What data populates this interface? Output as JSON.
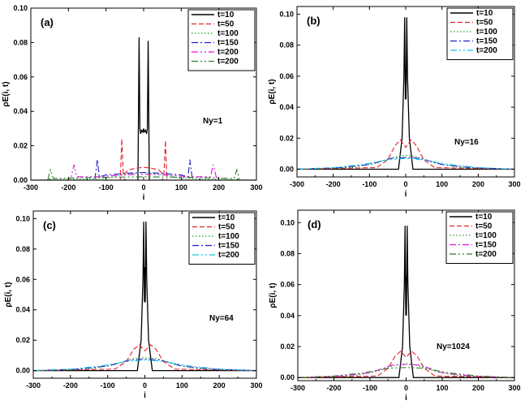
{
  "chart_data": [
    {
      "type": "line",
      "panel_label": "(a)",
      "annotation": "N<sub>y</sub>=1",
      "annotation_text": "Ny=1",
      "xlabel": "i",
      "ylabel": "ρE(i, t)",
      "xlim": [
        -300,
        300
      ],
      "ylim": [
        0,
        0.1
      ],
      "xticks": [
        -300,
        -200,
        -100,
        0,
        100,
        200,
        300
      ],
      "yticks": [
        0.0,
        0.02,
        0.04,
        0.06,
        0.08,
        0.1
      ],
      "ytick_labels": [
        "0.00",
        "0.02",
        "0.04",
        "0.06",
        "0.08",
        "0.10"
      ],
      "legend_position": "top-right",
      "series": [
        {
          "name": "t=10",
          "color": "#000000",
          "dash": "",
          "x": [
            -300,
            -15,
            -12,
            -10,
            -8,
            -5,
            -2,
            0,
            2,
            5,
            8,
            10,
            12,
            15,
            300
          ],
          "y": [
            0.0,
            0.0,
            0.083,
            0.03,
            0.027,
            0.029,
            0.028,
            0.03,
            0.028,
            0.029,
            0.027,
            0.03,
            0.081,
            0.0,
            0.0
          ]
        },
        {
          "name": "t=50",
          "color": "#e8202a",
          "dash": "6,3",
          "x": [
            -300,
            -70,
            -62,
            -58,
            -54,
            -40,
            -20,
            0,
            20,
            40,
            54,
            58,
            62,
            70,
            300
          ],
          "y": [
            0.0,
            0.0,
            0.0,
            0.024,
            0.003,
            0.006,
            0.007,
            0.0075,
            0.007,
            0.006,
            0.003,
            0.023,
            0.0,
            0.0,
            0.0
          ]
        },
        {
          "name": "t=100",
          "color": "#1aa31a",
          "dash": "1.5,2.5",
          "x": [
            -300,
            -100,
            -60,
            -20,
            0,
            20,
            60,
            100,
            300
          ],
          "y": [
            0.0,
            0.001,
            0.003,
            0.004,
            0.0045,
            0.004,
            0.003,
            0.001,
            0.0
          ]
        },
        {
          "name": "t=150",
          "color": "#2020c8",
          "dash": "8,3,2,3",
          "x": [
            -300,
            -130,
            -123,
            -118,
            -100,
            -50,
            0,
            50,
            100,
            118,
            123,
            130,
            300
          ],
          "y": [
            0.0,
            0.0,
            0.012,
            0.002,
            0.003,
            0.004,
            0.0045,
            0.004,
            0.003,
            0.002,
            0.012,
            0.0,
            0.0
          ]
        },
        {
          "name": "t=200",
          "color": "#e010e0",
          "dash": "8,3,2,3,2,3",
          "x": [
            -300,
            -195,
            -185,
            -178,
            -120,
            -60,
            0,
            60,
            120,
            178,
            185,
            195,
            300
          ],
          "y": [
            0.0,
            0.0,
            0.009,
            0.002,
            0.002,
            0.003,
            0.0035,
            0.003,
            0.002,
            0.002,
            0.009,
            0.0,
            0.0
          ]
        },
        {
          "name": "t=200",
          "color": "#2e7d2e",
          "dash": "8,3,2,3,2,3",
          "x": [
            -300,
            -255,
            -248,
            -240,
            -150,
            0,
            150,
            240,
            248,
            255,
            300
          ],
          "y": [
            0.0,
            0.0,
            0.006,
            0.001,
            0.0015,
            0.002,
            0.0015,
            0.001,
            0.006,
            0.0,
            0.0
          ]
        }
      ]
    },
    {
      "type": "line",
      "panel_label": "(b)",
      "annotation_text": "Ny=16",
      "xlabel": "i",
      "ylabel": "ρE(i, t)",
      "xlim": [
        -300,
        300
      ],
      "ylim": [
        -0.005,
        0.105
      ],
      "xticks": [
        -300,
        -200,
        -100,
        0,
        100,
        200,
        300
      ],
      "yticks": [
        0.0,
        0.02,
        0.04,
        0.06,
        0.08,
        0.1
      ],
      "ytick_labels": [
        "0.00",
        "0.02",
        "0.04",
        "0.06",
        "0.08",
        "0.10"
      ],
      "legend_position": "top-right",
      "series": [
        {
          "name": "t=10",
          "color": "#000000",
          "dash": "",
          "x": [
            -300,
            -20,
            -10,
            -5,
            -3,
            -1,
            0,
            1,
            3,
            5,
            10,
            20,
            300
          ],
          "y": [
            0.0,
            0.0,
            0.02,
            0.06,
            0.098,
            0.045,
            0.065,
            0.045,
            0.098,
            0.06,
            0.02,
            0.0,
            0.0
          ]
        },
        {
          "name": "t=50",
          "color": "#e8202a",
          "dash": "6,3",
          "x": [
            -300,
            -80,
            -50,
            -30,
            -15,
            0,
            15,
            30,
            50,
            80,
            300
          ],
          "y": [
            0.0,
            0.001,
            0.006,
            0.015,
            0.019,
            0.014,
            0.019,
            0.015,
            0.006,
            0.001,
            0.0
          ]
        },
        {
          "name": "t=100",
          "color": "#1aa31a",
          "dash": "1.5,2.5",
          "x": [
            -300,
            -150,
            -80,
            -30,
            0,
            30,
            80,
            150,
            300
          ],
          "y": [
            0.0,
            0.001,
            0.004,
            0.008,
            0.009,
            0.008,
            0.004,
            0.001,
            0.0
          ]
        },
        {
          "name": "t=150",
          "color": "#2020c8",
          "dash": "8,3,2,3",
          "x": [
            -300,
            -180,
            -100,
            -40,
            0,
            40,
            100,
            180,
            300
          ],
          "y": [
            0.0,
            0.001,
            0.003,
            0.007,
            0.0075,
            0.007,
            0.003,
            0.001,
            0.0
          ]
        },
        {
          "name": "t=200",
          "color": "#10c8e8",
          "dash": "8,3,2,3,2,3",
          "x": [
            -300,
            -200,
            -120,
            -50,
            0,
            50,
            120,
            200,
            300
          ],
          "y": [
            0.0,
            0.001,
            0.003,
            0.006,
            0.007,
            0.006,
            0.003,
            0.001,
            0.0
          ]
        }
      ]
    },
    {
      "type": "line",
      "panel_label": "(c)",
      "annotation_text": "Ny=64",
      "xlabel": "i",
      "ylabel": "ρE(i, t)",
      "xlim": [
        -300,
        300
      ],
      "ylim": [
        -0.005,
        0.105
      ],
      "xticks": [
        -300,
        -200,
        -100,
        0,
        100,
        200,
        300
      ],
      "yticks": [
        0.0,
        0.02,
        0.04,
        0.06,
        0.08,
        0.1
      ],
      "ytick_labels": [
        "0.00",
        "0.02",
        "0.04",
        "0.06",
        "0.08",
        "0.10"
      ],
      "legend_position": "top-right",
      "series": [
        {
          "name": "t=10",
          "color": "#000000",
          "dash": "",
          "x": [
            -300,
            -20,
            -10,
            -5,
            -3,
            -1,
            0,
            1,
            3,
            5,
            10,
            20,
            300
          ],
          "y": [
            0.0,
            0.0,
            0.02,
            0.06,
            0.098,
            0.045,
            0.068,
            0.045,
            0.098,
            0.06,
            0.02,
            0.0,
            0.0
          ]
        },
        {
          "name": "t=50",
          "color": "#e8202a",
          "dash": "6,3",
          "x": [
            -300,
            -80,
            -50,
            -30,
            -15,
            0,
            15,
            30,
            50,
            80,
            300
          ],
          "y": [
            0.0,
            0.001,
            0.006,
            0.014,
            0.017,
            0.013,
            0.017,
            0.014,
            0.006,
            0.001,
            0.0
          ]
        },
        {
          "name": "t=100",
          "color": "#1aa31a",
          "dash": "1.5,2.5",
          "x": [
            -300,
            -150,
            -80,
            -30,
            0,
            30,
            80,
            150,
            300
          ],
          "y": [
            0.0,
            0.001,
            0.004,
            0.008,
            0.0085,
            0.008,
            0.004,
            0.001,
            0.0
          ]
        },
        {
          "name": "t=150",
          "color": "#2020c8",
          "dash": "8,3,2,3",
          "x": [
            -300,
            -180,
            -100,
            -40,
            0,
            40,
            100,
            180,
            300
          ],
          "y": [
            0.0,
            0.001,
            0.003,
            0.007,
            0.0075,
            0.007,
            0.003,
            0.001,
            0.0
          ]
        },
        {
          "name": "t=200",
          "color": "#10c8e8",
          "dash": "8,3,2,3,2,3",
          "x": [
            -300,
            -200,
            -120,
            -50,
            0,
            50,
            120,
            200,
            300
          ],
          "y": [
            0.0,
            0.001,
            0.003,
            0.006,
            0.007,
            0.006,
            0.003,
            0.001,
            0.0
          ]
        }
      ]
    },
    {
      "type": "line",
      "panel_label": "(d)",
      "annotation_text": "Ny=1024",
      "xlabel": "i",
      "ylabel": "ρE(i, t)",
      "xlim": [
        -300,
        300
      ],
      "ylim": [
        -0.002,
        0.108
      ],
      "xticks": [
        -300,
        -200,
        -100,
        0,
        100,
        200,
        300
      ],
      "yticks": [
        0.0,
        0.02,
        0.04,
        0.06,
        0.08,
        0.1
      ],
      "ytick_labels": [
        "0.00",
        "0.02",
        "0.04",
        "0.06",
        "0.08",
        "0.10"
      ],
      "legend_position": "top-right",
      "series": [
        {
          "name": "t=10",
          "color": "#000000",
          "dash": "",
          "x": [
            -300,
            -20,
            -10,
            -5,
            -3,
            -1,
            0,
            1,
            3,
            5,
            10,
            20,
            300
          ],
          "y": [
            0.0,
            0.0,
            0.02,
            0.06,
            0.098,
            0.04,
            0.065,
            0.04,
            0.098,
            0.06,
            0.02,
            0.0,
            0.0
          ]
        },
        {
          "name": "t=50",
          "color": "#e8202a",
          "dash": "6,3",
          "x": [
            -300,
            -80,
            -50,
            -30,
            -15,
            0,
            15,
            30,
            50,
            80,
            300
          ],
          "y": [
            0.0,
            0.001,
            0.006,
            0.014,
            0.017,
            0.013,
            0.017,
            0.014,
            0.006,
            0.001,
            0.0
          ]
        },
        {
          "name": "t=100",
          "color": "#1aa31a",
          "dash": "1.5,2.5",
          "x": [
            -300,
            -150,
            -80,
            -30,
            0,
            30,
            80,
            150,
            300
          ],
          "y": [
            0.0,
            0.001,
            0.004,
            0.008,
            0.009,
            0.008,
            0.004,
            0.001,
            0.0
          ]
        },
        {
          "name": "t=150",
          "color": "#e010e0",
          "dash": "8,3,2,3",
          "x": [
            -300,
            -180,
            -100,
            -40,
            0,
            40,
            100,
            180,
            300
          ],
          "y": [
            0.0,
            0.001,
            0.003,
            0.008,
            0.0085,
            0.008,
            0.003,
            0.001,
            0.0
          ]
        },
        {
          "name": "t=200",
          "color": "#2e7d2e",
          "dash": "8,3,2,3,2,3",
          "x": [
            -300,
            -200,
            -120,
            -50,
            0,
            50,
            120,
            200,
            300
          ],
          "y": [
            0.0,
            0.001,
            0.003,
            0.006,
            0.0065,
            0.006,
            0.003,
            0.001,
            0.0
          ]
        }
      ]
    }
  ]
}
